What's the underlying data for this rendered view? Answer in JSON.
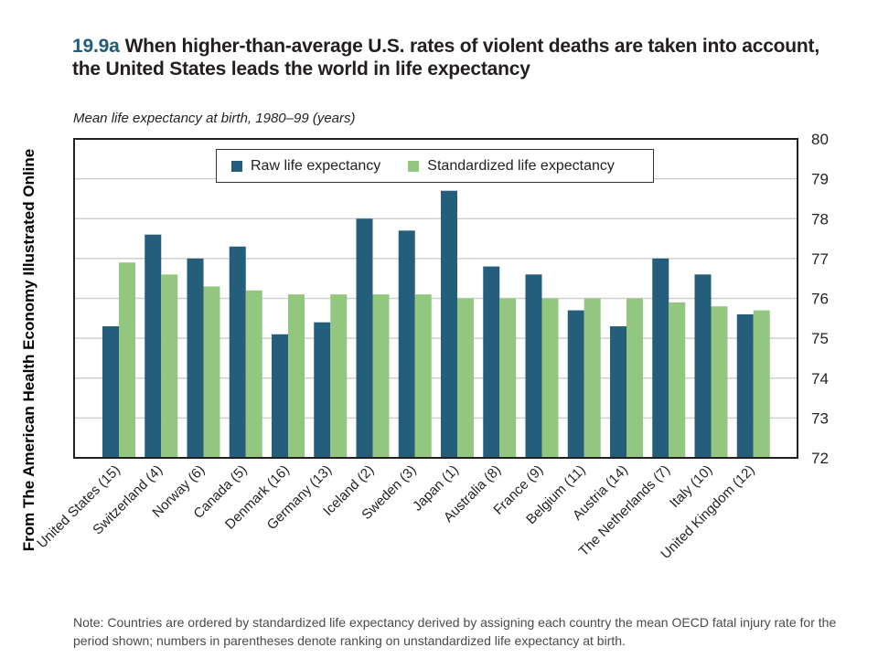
{
  "figure_number": "19.9a",
  "side_caption": "From The American Health Economy Illustrated Online",
  "note": "Note: Countries are ordered by standardized life expectancy derived by assigning each country the mean OECD fatal injury rate for the period shown; numbers in parentheses denote ranking on unstandardized life expectancy at birth.",
  "colors": {
    "raw": "#255e7a",
    "standardized": "#93c77f",
    "grid": "#d0d0d0",
    "axis": "#231f20"
  },
  "chart_data": {
    "type": "bar",
    "title": "When higher-than-average U.S. rates of violent deaths are taken into account, the United States leads the world in life expectancy",
    "subtitle": "Mean life expectancy at birth, 1980–99 (years)",
    "xlabel": "",
    "ylabel": "",
    "ylim": [
      72,
      80
    ],
    "yticks": [
      72,
      73,
      74,
      75,
      76,
      77,
      78,
      79,
      80
    ],
    "y_axis_side": "right",
    "grid": true,
    "legend_position": "top-center",
    "categories": [
      "United States (15)",
      "Switzerland (4)",
      "Norway (6)",
      "Canada (5)",
      "Denmark (16)",
      "Germany (13)",
      "Iceland (2)",
      "Sweden (3)",
      "Japan (1)",
      "Australia (8)",
      "France (9)",
      "Belgium (11)",
      "Austria (14)",
      "The Netherlands (7)",
      "Italy (10)",
      "United Kingdom (12)"
    ],
    "series": [
      {
        "name": "Raw life expectancy",
        "values": [
          75.3,
          77.6,
          77.0,
          77.3,
          75.1,
          75.4,
          78.0,
          77.7,
          78.7,
          76.8,
          76.6,
          75.7,
          75.3,
          77.0,
          76.6,
          75.6
        ]
      },
      {
        "name": "Standardized life expectancy",
        "values": [
          76.9,
          76.6,
          76.3,
          76.2,
          76.1,
          76.1,
          76.1,
          76.1,
          76.0,
          76.0,
          76.0,
          76.0,
          76.0,
          75.9,
          75.8,
          75.7
        ]
      }
    ]
  }
}
